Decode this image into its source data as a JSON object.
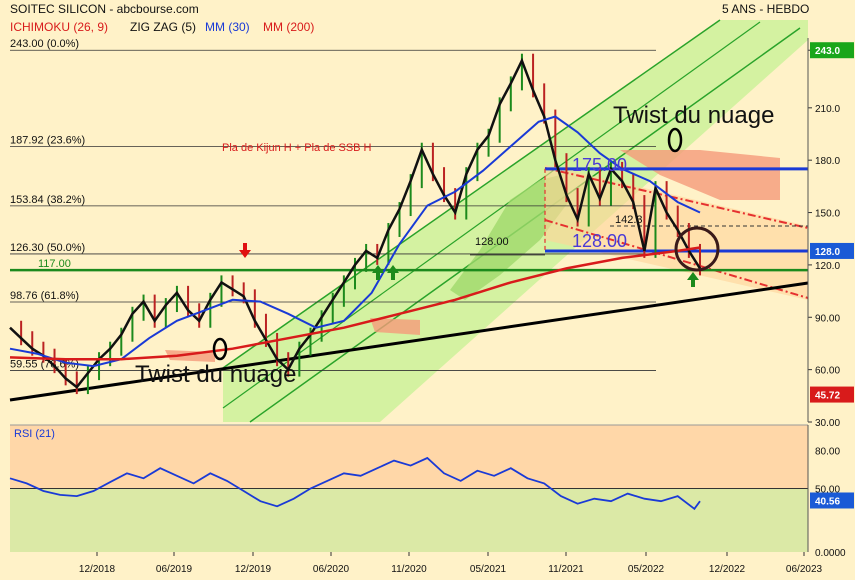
{
  "header": {
    "title": "SOITEC SILICON - abcbourse.com",
    "period": "5 ANS - HEBDO",
    "legend": [
      {
        "label": "ICHIMOKU (26, 9)",
        "color": "#d81b1b"
      },
      {
        "label": "ZIG ZAG (5)",
        "color": "#111111"
      },
      {
        "label": "MM (30)",
        "color": "#1a3ad6"
      },
      {
        "label": "MM (200)",
        "color": "#d81b1b"
      }
    ]
  },
  "chart_data": [
    {
      "type": "line",
      "yaxis_ticks": [
        "243.0",
        "210.0",
        "180.0",
        "150.0",
        "120.0",
        "90.00",
        "60.00",
        "30.00"
      ],
      "ylim": [
        30,
        250
      ],
      "xaxis_ticks": [
        "12/2018",
        "06/2019",
        "12/2019",
        "06/2020",
        "11/2020",
        "05/2021",
        "11/2021",
        "05/2022",
        "12/2022",
        "06/2023"
      ],
      "last_price": "128.0",
      "price_marker": "243.0",
      "low_marker": "45.72",
      "fib_levels": [
        {
          "label": "243.00 (0.0%)",
          "value": 243.0
        },
        {
          "label": "187.92 (23.6%)",
          "value": 187.92
        },
        {
          "label": "153.84 (38.2%)",
          "value": 153.84
        },
        {
          "label": "126.30 (50.0%)",
          "value": 126.3
        },
        {
          "label": "98.76 (61.8%)",
          "value": 98.76
        },
        {
          "label": "59.55 (78.6%)",
          "value": 59.55
        }
      ],
      "support_label": "117.00",
      "annotations": {
        "twist1": "Twist du nuage",
        "twist2": "Twist du nuage",
        "kijun_note": "Pla de Kijun H + Pla de SSB H",
        "level_175": "175.00",
        "level_128_big": "128.00",
        "level_128_small": "128.00",
        "level_142": "142.3"
      },
      "series": [
        {
          "values": [
            [
              0,
              84
            ],
            [
              4,
              78
            ],
            [
              8,
              72
            ],
            [
              12,
              68
            ],
            [
              16,
              62
            ],
            [
              20,
              55
            ],
            [
              24,
              50
            ],
            [
              28,
              58
            ],
            [
              32,
              66
            ],
            [
              36,
              72
            ],
            [
              40,
              80
            ],
            [
              44,
              92
            ],
            [
              48,
              99
            ],
            [
              52,
              88
            ],
            [
              56,
              97
            ],
            [
              60,
              104
            ],
            [
              64,
              94
            ],
            [
              68,
              88
            ],
            [
              72,
              100
            ],
            [
              76,
              110
            ],
            [
              80,
              106
            ],
            [
              84,
              102
            ],
            [
              88,
              88
            ],
            [
              92,
              77
            ],
            [
              96,
              66
            ],
            [
              100,
              60
            ],
            [
              104,
              72
            ],
            [
              108,
              80
            ],
            [
              112,
              90
            ],
            [
              116,
              100
            ],
            [
              120,
              110
            ],
            [
              124,
              120
            ],
            [
              128,
              128
            ],
            [
              132,
              124
            ],
            [
              136,
              140
            ],
            [
              140,
              152
            ],
            [
              144,
              168
            ],
            [
              148,
              186
            ],
            [
              152,
              172
            ],
            [
              156,
              160
            ],
            [
              160,
              150
            ],
            [
              164,
              172
            ],
            [
              168,
              186
            ],
            [
              172,
              194
            ],
            [
              176,
              212
            ],
            [
              180,
              224
            ],
            [
              184,
              237
            ],
            [
              188,
              220
            ],
            [
              192,
              205
            ],
            [
              196,
              180
            ],
            [
              200,
              160
            ],
            [
              204,
              146
            ],
            [
              208,
              172
            ],
            [
              212,
              158
            ],
            [
              216,
              175
            ],
            [
              220,
              168
            ],
            [
              224,
              156
            ],
            [
              228,
              128
            ],
            [
              232,
              164
            ],
            [
              236,
              150
            ],
            [
              240,
              140
            ],
            [
              244,
              128
            ],
            [
              248,
              118
            ]
          ]
        },
        {
          "values": [
            [
              0,
              72
            ],
            [
              10,
              69
            ],
            [
              20,
              64
            ],
            [
              30,
              62
            ],
            [
              40,
              66
            ],
            [
              50,
              78
            ],
            [
              60,
              88
            ],
            [
              70,
              94
            ],
            [
              80,
              100
            ],
            [
              90,
              99
            ],
            [
              100,
              92
            ],
            [
              110,
              84
            ],
            [
              120,
              88
            ],
            [
              130,
              104
            ],
            [
              140,
              132
            ],
            [
              150,
              154
            ],
            [
              160,
              162
            ],
            [
              170,
              174
            ],
            [
              180,
              188
            ],
            [
              190,
              202
            ],
            [
              196,
              205
            ],
            [
              204,
              196
            ],
            [
              212,
              184
            ],
            [
              220,
              175
            ],
            [
              230,
              168
            ],
            [
              240,
              156
            ],
            [
              248,
              150
            ]
          ]
        },
        {
          "values": [
            [
              0,
              67
            ],
            [
              20,
              66
            ],
            [
              40,
              66
            ],
            [
              60,
              68
            ],
            [
              80,
              72
            ],
            [
              100,
              78
            ],
            [
              120,
              84
            ],
            [
              140,
              92
            ],
            [
              160,
              100
            ],
            [
              180,
              110
            ],
            [
              200,
              118
            ],
            [
              220,
              124
            ],
            [
              240,
              128
            ],
            [
              248,
              130
            ]
          ]
        }
      ],
      "rsi": {
        "label": "RSI (21)",
        "last": "40.56",
        "ticks": [
          "80.00",
          "50.00",
          "0.0000"
        ],
        "ylim": [
          0,
          100
        ],
        "values": [
          [
            0,
            58
          ],
          [
            6,
            54
          ],
          [
            12,
            48
          ],
          [
            18,
            45
          ],
          [
            24,
            44
          ],
          [
            30,
            48
          ],
          [
            36,
            55
          ],
          [
            42,
            62
          ],
          [
            48,
            58
          ],
          [
            54,
            66
          ],
          [
            60,
            60
          ],
          [
            66,
            54
          ],
          [
            72,
            62
          ],
          [
            78,
            56
          ],
          [
            84,
            48
          ],
          [
            90,
            40
          ],
          [
            96,
            36
          ],
          [
            102,
            42
          ],
          [
            108,
            50
          ],
          [
            114,
            56
          ],
          [
            120,
            62
          ],
          [
            126,
            60
          ],
          [
            132,
            66
          ],
          [
            138,
            72
          ],
          [
            144,
            68
          ],
          [
            150,
            74
          ],
          [
            156,
            62
          ],
          [
            162,
            56
          ],
          [
            168,
            64
          ],
          [
            174,
            60
          ],
          [
            180,
            66
          ],
          [
            186,
            58
          ],
          [
            192,
            54
          ],
          [
            198,
            44
          ],
          [
            204,
            38
          ],
          [
            210,
            42
          ],
          [
            216,
            40
          ],
          [
            222,
            46
          ],
          [
            228,
            42
          ],
          [
            234,
            40
          ],
          [
            240,
            44
          ],
          [
            246,
            34
          ],
          [
            248,
            40
          ]
        ]
      }
    }
  ]
}
